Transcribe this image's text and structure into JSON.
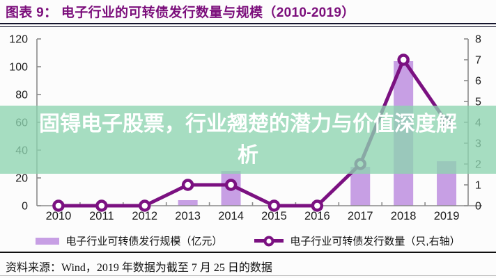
{
  "header": {
    "title": "图表 9： 电子行业的可转债发行数量与规模（2010-2019）"
  },
  "overlay": {
    "text": "固锝电子股票，行业翘楚的潜力与价值深度解析",
    "background_color": "rgba(141,212,175,0.78)",
    "text_color": "#ffffff"
  },
  "footer": {
    "source": "资料来源：Wind，2019 年数据为截至 7 月 25 日的数据"
  },
  "colors": {
    "title": "#7b0e7b",
    "bar": "#c79fe4",
    "line": "#7b1181",
    "axis": "#8a8a8a",
    "rule": "#15152d"
  },
  "chart_data": {
    "type": "bar",
    "subtype": "bar+line dual axis",
    "title": "电子行业的可转债发行数量与规模（2010-2019）",
    "categories": [
      "2010",
      "2011",
      "2012",
      "2013",
      "2014",
      "2015",
      "2016",
      "2017",
      "2018",
      "2019"
    ],
    "series": [
      {
        "name": "电子行业可转债发行规模（亿元）",
        "type": "bar",
        "axis": "left",
        "color": "#c79fe4",
        "values": [
          0,
          0,
          0,
          4,
          25,
          0,
          0,
          28,
          104,
          32
        ]
      },
      {
        "name": "电子行业可转债发行数量（只,右轴）",
        "type": "line",
        "axis": "right",
        "color": "#7b1181",
        "marker": "circle-open",
        "values": [
          0,
          0,
          0,
          1,
          1,
          0,
          0,
          2,
          7,
          4
        ]
      }
    ],
    "left_axis": {
      "min": 0,
      "max": 120,
      "step": 20,
      "ticks": [
        0,
        20,
        40,
        60,
        80,
        100,
        120
      ]
    },
    "right_axis": {
      "min": 0,
      "max": 8,
      "step": 1,
      "ticks": [
        0,
        1,
        2,
        3,
        4,
        5,
        6,
        7,
        8
      ]
    },
    "grid": false,
    "legend_position": "bottom"
  }
}
